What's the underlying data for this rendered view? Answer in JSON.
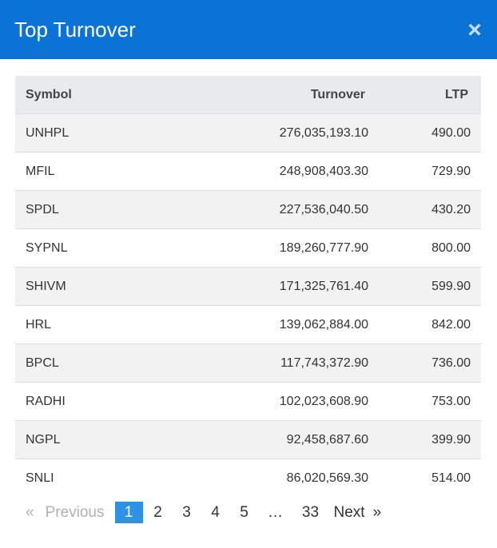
{
  "header": {
    "title": "Top Turnover",
    "close_symbol": "×"
  },
  "table": {
    "columns": [
      "Symbol",
      "Turnover",
      "LTP"
    ],
    "rows": [
      {
        "symbol": "UNHPL",
        "turnover": "276,035,193.10",
        "ltp": "490.00"
      },
      {
        "symbol": "MFIL",
        "turnover": "248,908,403.30",
        "ltp": "729.90"
      },
      {
        "symbol": "SPDL",
        "turnover": "227,536,040.50",
        "ltp": "430.20"
      },
      {
        "symbol": "SYPNL",
        "turnover": "189,260,777.90",
        "ltp": "800.00"
      },
      {
        "symbol": "SHIVM",
        "turnover": "171,325,761.40",
        "ltp": "599.90"
      },
      {
        "symbol": "HRL",
        "turnover": "139,062,884.00",
        "ltp": "842.00"
      },
      {
        "symbol": "BPCL",
        "turnover": "117,743,372.90",
        "ltp": "736.00"
      },
      {
        "symbol": "RADHI",
        "turnover": "102,023,608.90",
        "ltp": "753.00"
      },
      {
        "symbol": "NGPL",
        "turnover": "92,458,687.60",
        "ltp": "399.90"
      },
      {
        "symbol": "SNLI",
        "turnover": "86,020,569.30",
        "ltp": "514.00"
      }
    ]
  },
  "pagination": {
    "prev_arrow": "«",
    "prev_label": "Previous",
    "pages": [
      "1",
      "2",
      "3",
      "4",
      "5"
    ],
    "active_page": "1",
    "ellipsis": "…",
    "last_page": "33",
    "next_label": "Next",
    "next_arrow": "»"
  },
  "colors": {
    "header_bg": "#0c73d6",
    "active_page_bg": "#2d91e6"
  }
}
